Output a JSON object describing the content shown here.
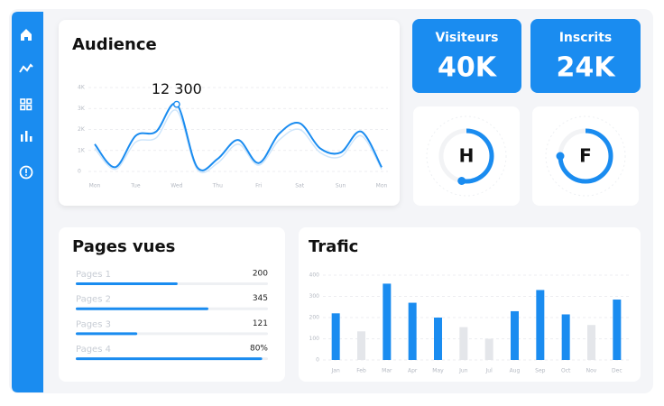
{
  "audience": {
    "title": "Audience",
    "annotation": "12 300",
    "categories": [
      "Mon",
      null,
      "Tue",
      null,
      "Wed",
      null,
      "Thu",
      null,
      "Fri",
      null,
      "Sat",
      null,
      "Sun",
      null,
      "Mon"
    ],
    "series": [
      {
        "color": "#1a8cf0",
        "values": [
          1300,
          200,
          1700,
          1900,
          3200,
          200,
          600,
          1500,
          400,
          1800,
          2300,
          1100,
          900,
          1900,
          200
        ]
      },
      {
        "color": "#cfe6fb",
        "values": [
          1100,
          100,
          1400,
          1600,
          2900,
          100,
          400,
          1300,
          300,
          1500,
          2000,
          900,
          700,
          1700,
          100
        ]
      }
    ],
    "ylim": [
      0,
      4000
    ],
    "yticks": [
      0,
      {
        "value": 1000,
        "label": "1K"
      },
      {
        "value": 2000,
        "label": "2K"
      },
      {
        "value": 3000,
        "label": "3K"
      },
      {
        "value": 4000,
        "label": "4K"
      }
    ],
    "highlight": 4
  },
  "stats": [
    {
      "label": "Visiteurs",
      "value": "40K"
    },
    {
      "label": "Inscrits",
      "value": "24K"
    }
  ],
  "gauges": [
    {
      "label": "H",
      "value": 53
    },
    {
      "label": "F",
      "value": 75
    }
  ],
  "pages": {
    "title": "Pages vues",
    "rows": [
      {
        "label": "Pages 1",
        "value": 200,
        "value_label": "200",
        "progress": 53
      },
      {
        "label": "Pages 2",
        "value": 345,
        "value_label": "345",
        "progress": 69
      },
      {
        "label": "Pages 3",
        "value": 121,
        "value_label": "121",
        "progress": 32
      },
      {
        "label": "Pages 4",
        "value": 80,
        "value_label": "80%",
        "progress": 97
      }
    ]
  },
  "trafic": {
    "type": "bar",
    "title": "Trafic",
    "categories": [
      "Jan",
      "Feb",
      "Mar",
      "Apr",
      "May",
      "Jun",
      "Jul",
      "Aug",
      "Sep",
      "Oct",
      "Nov",
      "Dec"
    ],
    "values": [
      220,
      135,
      360,
      270,
      200,
      155,
      100,
      230,
      330,
      215,
      165,
      285
    ],
    "colors": [
      "#1a8cf0",
      "#e4e6ea",
      "#1a8cf0",
      "#1a8cf0",
      "#1a8cf0",
      "#e4e6ea",
      "#e4e6ea",
      "#1a8cf0",
      "#1a8cf0",
      "#1a8cf0",
      "#e4e6ea",
      "#1a8cf0"
    ],
    "ylim": [
      0,
      400
    ],
    "yticks": [
      0,
      100,
      200,
      300,
      400
    ],
    "grid": true
  }
}
